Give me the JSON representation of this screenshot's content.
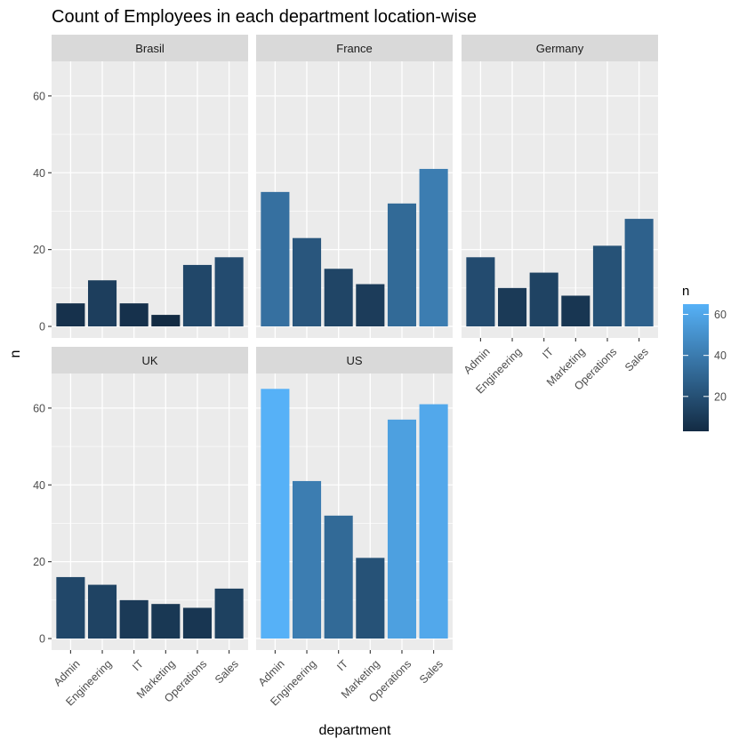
{
  "chart_data": {
    "type": "bar",
    "title": "Count of Employees in each department location-wise",
    "xlabel": "department",
    "ylabel": "n",
    "ylim": [
      -3,
      69
    ],
    "yticks": [
      0,
      20,
      40,
      60
    ],
    "categories": [
      "Admin",
      "Engineering",
      "IT",
      "Marketing",
      "Operations",
      "Sales"
    ],
    "facet_layout": "3 columns × 2 rows",
    "panels": [
      {
        "name": "Brasil",
        "values": [
          6,
          12,
          6,
          3,
          16,
          18
        ]
      },
      {
        "name": "France",
        "values": [
          35,
          23,
          15,
          11,
          32,
          41
        ]
      },
      {
        "name": "Germany",
        "values": [
          18,
          10,
          14,
          8,
          21,
          28
        ]
      },
      {
        "name": "UK",
        "values": [
          16,
          14,
          10,
          9,
          8,
          13
        ]
      },
      {
        "name": "US",
        "values": [
          65,
          41,
          32,
          21,
          57,
          61
        ]
      }
    ],
    "legend": {
      "title": "n",
      "placement": "right",
      "ticks": [
        20,
        40,
        60
      ],
      "range": [
        3,
        65
      ],
      "low_color": "#132B43",
      "high_color": "#56B1F7"
    },
    "grid": true,
    "panel_background": "#EBEBEB",
    "strip_background": "#D9D9D9"
  }
}
